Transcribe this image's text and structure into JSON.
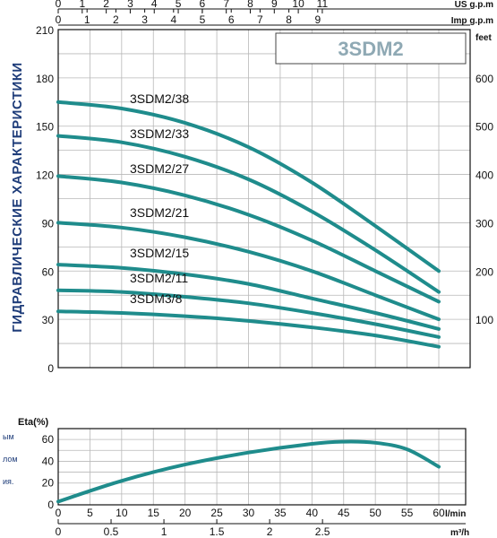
{
  "colors": {
    "curve": "#1f8c8c",
    "grid": "#b8b8b8",
    "axis": "#111111",
    "badge": "#8fa9b4",
    "side_title": "#1f3d7a"
  },
  "side_title": "ГИДРАВЛИЧЕСКИЕ ХАРАКТЕРИСТИКИ",
  "left_fragments": [
    "ым",
    "лом",
    "ия."
  ],
  "badge": "3SDM2",
  "chart_data": [
    {
      "type": "line",
      "title": "3SDM2",
      "units": {
        "top_us": "US g.p.m",
        "top_imp": "Imp g.p.m",
        "right": "feet"
      },
      "x_range": [
        0,
        60
      ],
      "y_range": [
        0,
        210
      ],
      "y_right_range": [
        0,
        700
      ],
      "grid": true,
      "x_ticks_us": [
        "0",
        "1",
        "2",
        "3",
        "4",
        "5",
        "6",
        "7",
        "8",
        "9",
        "10",
        "11"
      ],
      "x_ticks_imp": [
        "0",
        "1",
        "2",
        "3",
        "4",
        "5",
        "6",
        "7",
        "8",
        "9"
      ],
      "y_ticks": [
        "0",
        "30",
        "60",
        "90",
        "120",
        "150",
        "180",
        "210"
      ],
      "y_right_ticks": [
        "100",
        "200",
        "300",
        "400",
        "500",
        "600"
      ],
      "x": [
        0,
        10,
        20,
        30,
        40,
        50,
        60
      ],
      "series": [
        {
          "name": "3SDM2/38",
          "values": [
            165,
            161,
            152,
            137,
            115,
            88,
            60
          ]
        },
        {
          "name": "3SDM2/33",
          "values": [
            144,
            140,
            131,
            117,
            97,
            73,
            47
          ]
        },
        {
          "name": "3SDM2/27",
          "values": [
            119,
            115,
            107,
            95,
            79,
            60,
            41
          ]
        },
        {
          "name": "3SDM2/21",
          "values": [
            90,
            87,
            81,
            72,
            60,
            45,
            30
          ]
        },
        {
          "name": "3SDM2/15",
          "values": [
            64,
            62,
            58,
            52,
            43,
            34,
            24
          ]
        },
        {
          "name": "3SDM2/11",
          "values": [
            48,
            47,
            44,
            40,
            34,
            27,
            19
          ]
        },
        {
          "name": "3SDM3/8",
          "values": [
            35,
            34,
            32,
            29,
            25,
            20,
            13
          ]
        }
      ]
    },
    {
      "type": "line",
      "ylabel": "Eta(%)",
      "x_units": [
        "l/min",
        "m³/h"
      ],
      "x_range": [
        0,
        60
      ],
      "y_range": [
        0,
        70
      ],
      "grid": true,
      "x_ticks_lmin": [
        "0",
        "5",
        "10",
        "15",
        "20",
        "25",
        "30",
        "35",
        "40",
        "45",
        "50",
        "55",
        "60"
      ],
      "x_ticks_m3h": [
        "0",
        "0.5",
        "1",
        "1.5",
        "2",
        "2.5"
      ],
      "y_ticks": [
        "0",
        "20",
        "40",
        "60"
      ],
      "x": [
        0,
        10,
        20,
        30,
        40,
        45,
        50,
        55,
        60
      ],
      "series": [
        {
          "values": [
            3,
            22,
            37,
            48,
            56,
            58,
            57,
            51,
            35
          ]
        }
      ]
    }
  ]
}
